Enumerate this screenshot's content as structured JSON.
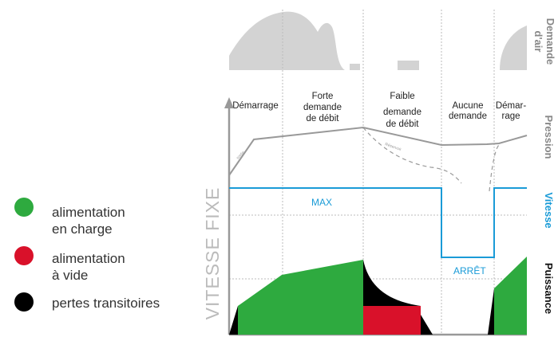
{
  "legend": [
    {
      "label_line1": "alimentation",
      "label_line2": "en charge",
      "color": "#2eaa3f"
    },
    {
      "label_line1": "alimentation",
      "label_line2": "à vide",
      "color": "#d9112a"
    },
    {
      "label_line1": "pertes transitoires",
      "label_line2": "",
      "color": "#000000"
    }
  ],
  "y_axis_label": "VITESSE FIXE",
  "phases": [
    {
      "line1": "Démarrage",
      "line2": "",
      "line3": ""
    },
    {
      "line1": "Forte",
      "line2": "demande",
      "line3": "de débit"
    },
    {
      "line1": "Faible",
      "line2": "demande",
      "line3": "de débit"
    },
    {
      "line1": "Aucune",
      "line2": "demande",
      "line3": ""
    },
    {
      "line1": "Démar-",
      "line2": "rage",
      "line3": ""
    }
  ],
  "row_labels": {
    "air_demand_line1": "Demande",
    "air_demand_line2": "d'air",
    "pressure": "Pression",
    "speed": "Vitesse",
    "power": "Puissance"
  },
  "speed_labels": {
    "max": "MAX",
    "stop": "ARRÊT"
  },
  "small_labels": {
    "pressure_rise": "sortie",
    "pressure_drop": "Réservoir"
  },
  "colors": {
    "grey_fill": "#d3d3d3",
    "pressure_line": "#999999",
    "speed_line": "#1a9bd7",
    "green": "#2eaa3f",
    "red": "#d9112a",
    "black": "#000000",
    "row_label_grey": "#888888"
  }
}
